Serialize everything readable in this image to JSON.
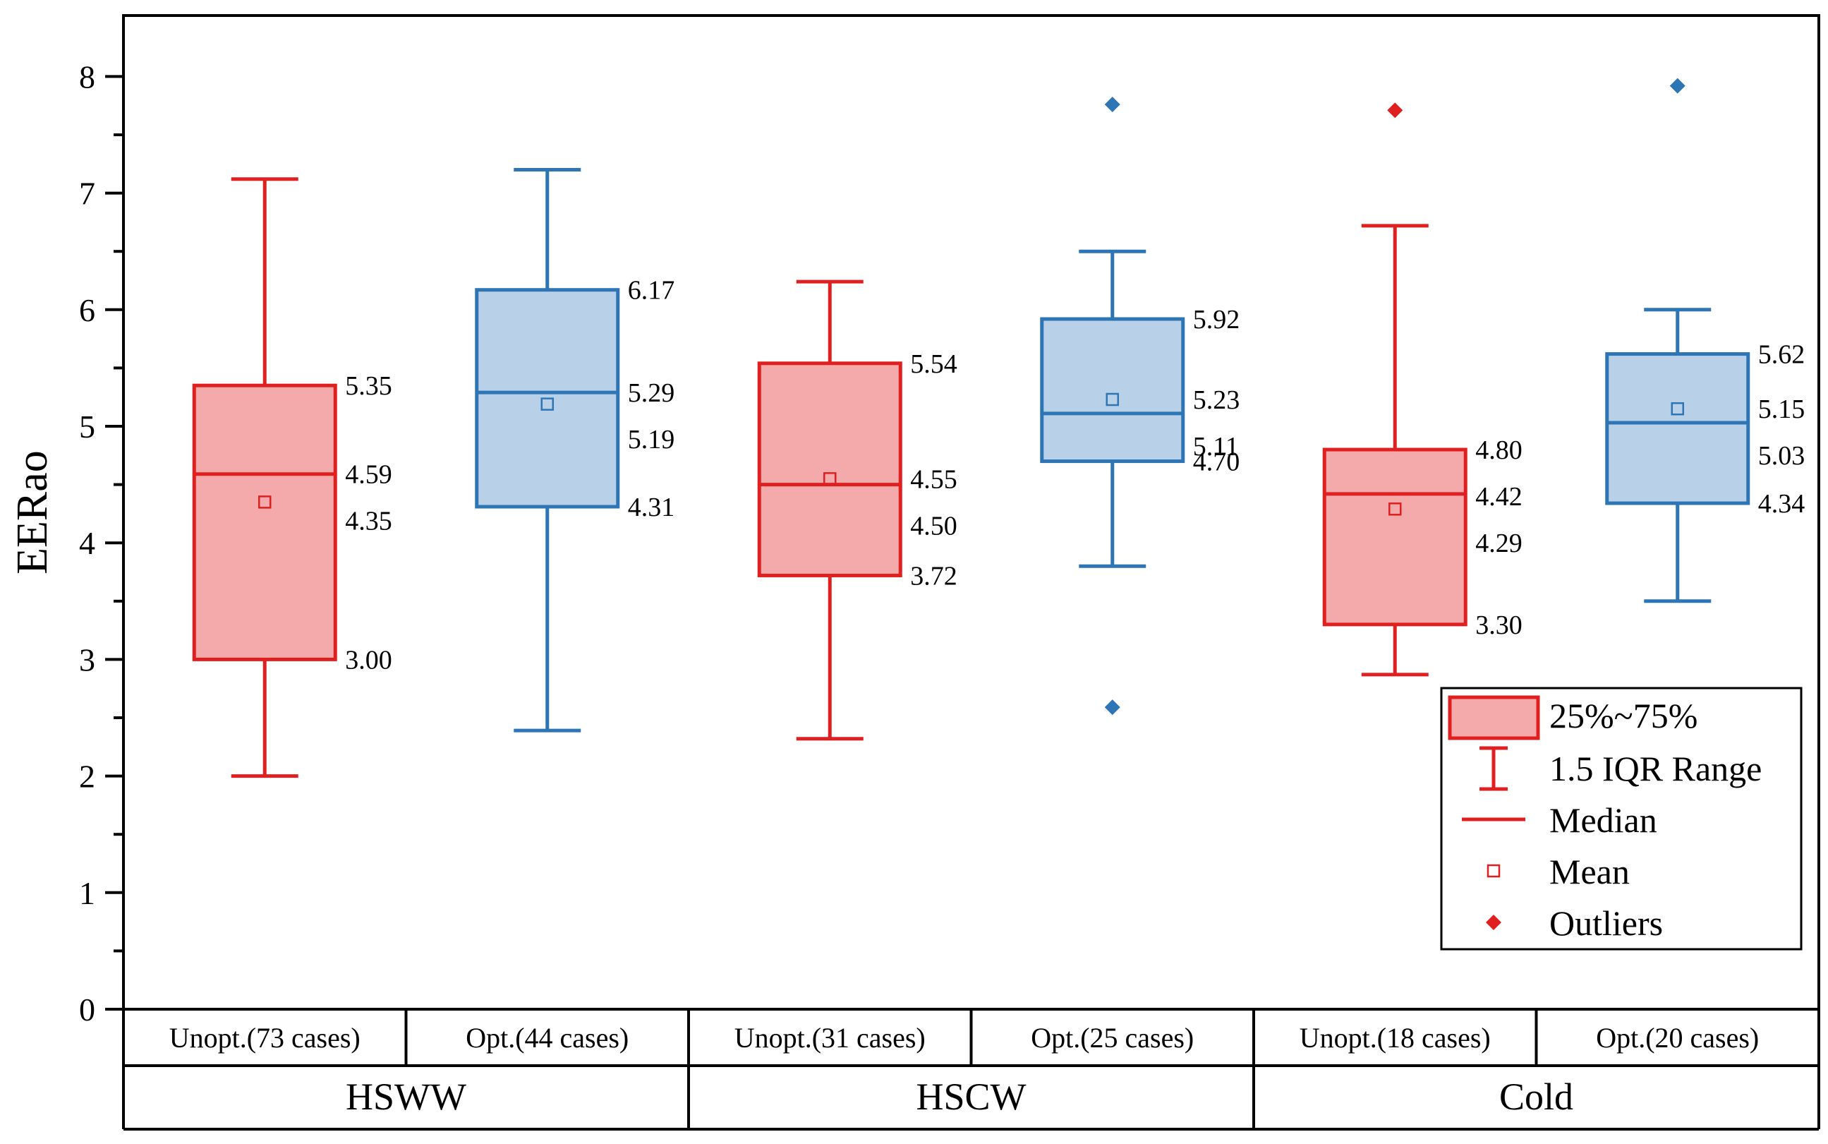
{
  "chart_data": {
    "type": "box",
    "ylabel": "EERao",
    "ylim": [
      0,
      8.4
    ],
    "yticks": [
      "0",
      "1",
      "2",
      "3",
      "4",
      "5",
      "6",
      "7",
      "8"
    ],
    "colors": {
      "unopt_stroke": "#e02020",
      "unopt_fill": "#f4aaaa",
      "opt_stroke": "#2e75b6",
      "opt_fill": "#b9d1e8"
    },
    "conditions": [
      "HSWW",
      "HSCW",
      "Cold"
    ],
    "boxes": [
      {
        "condition": "HSWW",
        "group": "Unopt.(73 cases)",
        "series": "unopt",
        "whisker_low": 2.0,
        "q1": 3.0,
        "median": 4.59,
        "mean": 4.35,
        "q3": 5.35,
        "whisker_high": 7.12,
        "outliers": [],
        "labels": {
          "q3": "5.35",
          "median": "4.59",
          "mean": "4.35",
          "q1": "3.00"
        }
      },
      {
        "condition": "HSWW",
        "group": "Opt.(44 cases)",
        "series": "opt",
        "whisker_low": 2.39,
        "q1": 4.31,
        "median": 5.29,
        "mean": 5.19,
        "q3": 6.17,
        "whisker_high": 7.2,
        "outliers": [],
        "labels": {
          "q3": "6.17",
          "median": "5.29",
          "mean": "5.19",
          "q1": "4.31"
        }
      },
      {
        "condition": "HSCW",
        "group": "Unopt.(31 cases)",
        "series": "unopt",
        "whisker_low": 2.32,
        "q1": 3.72,
        "median": 4.5,
        "mean": 4.55,
        "q3": 5.54,
        "whisker_high": 6.24,
        "outliers": [],
        "labels": {
          "q3": "5.54",
          "mean": "4.55",
          "median": "4.50",
          "q1": "3.72"
        }
      },
      {
        "condition": "HSCW",
        "group": "Opt.(25 cases)",
        "series": "opt",
        "whisker_low": 3.8,
        "q1": 4.7,
        "median": 5.11,
        "mean": 5.23,
        "q3": 5.92,
        "whisker_high": 6.5,
        "outliers": [
          7.76,
          2.59
        ],
        "labels": {
          "q3": "5.92",
          "mean": "5.23",
          "median": "5.11",
          "q1": "4.70"
        }
      },
      {
        "condition": "Cold",
        "group": "Unopt.(18 cases)",
        "series": "unopt",
        "whisker_low": 2.87,
        "q1": 3.3,
        "median": 4.42,
        "mean": 4.29,
        "q3": 4.8,
        "whisker_high": 6.72,
        "outliers": [
          7.71
        ],
        "labels": {
          "q3": "4.80",
          "median": "4.42",
          "mean": "4.29",
          "q1": "3.30"
        }
      },
      {
        "condition": "Cold",
        "group": "Opt.(20 cases)",
        "series": "opt",
        "whisker_low": 3.5,
        "q1": 4.34,
        "median": 5.03,
        "mean": 5.15,
        "q3": 5.62,
        "whisker_high": 6.0,
        "outliers": [
          7.92
        ],
        "labels": {
          "q3": "5.62",
          "mean": "5.15",
          "median": "5.03",
          "q1": "4.34"
        }
      }
    ],
    "legend": {
      "position": "bottom-right",
      "items": [
        "25%~75%",
        "1.5 IQR Range",
        "Median",
        "Mean",
        "Outliers"
      ]
    }
  }
}
